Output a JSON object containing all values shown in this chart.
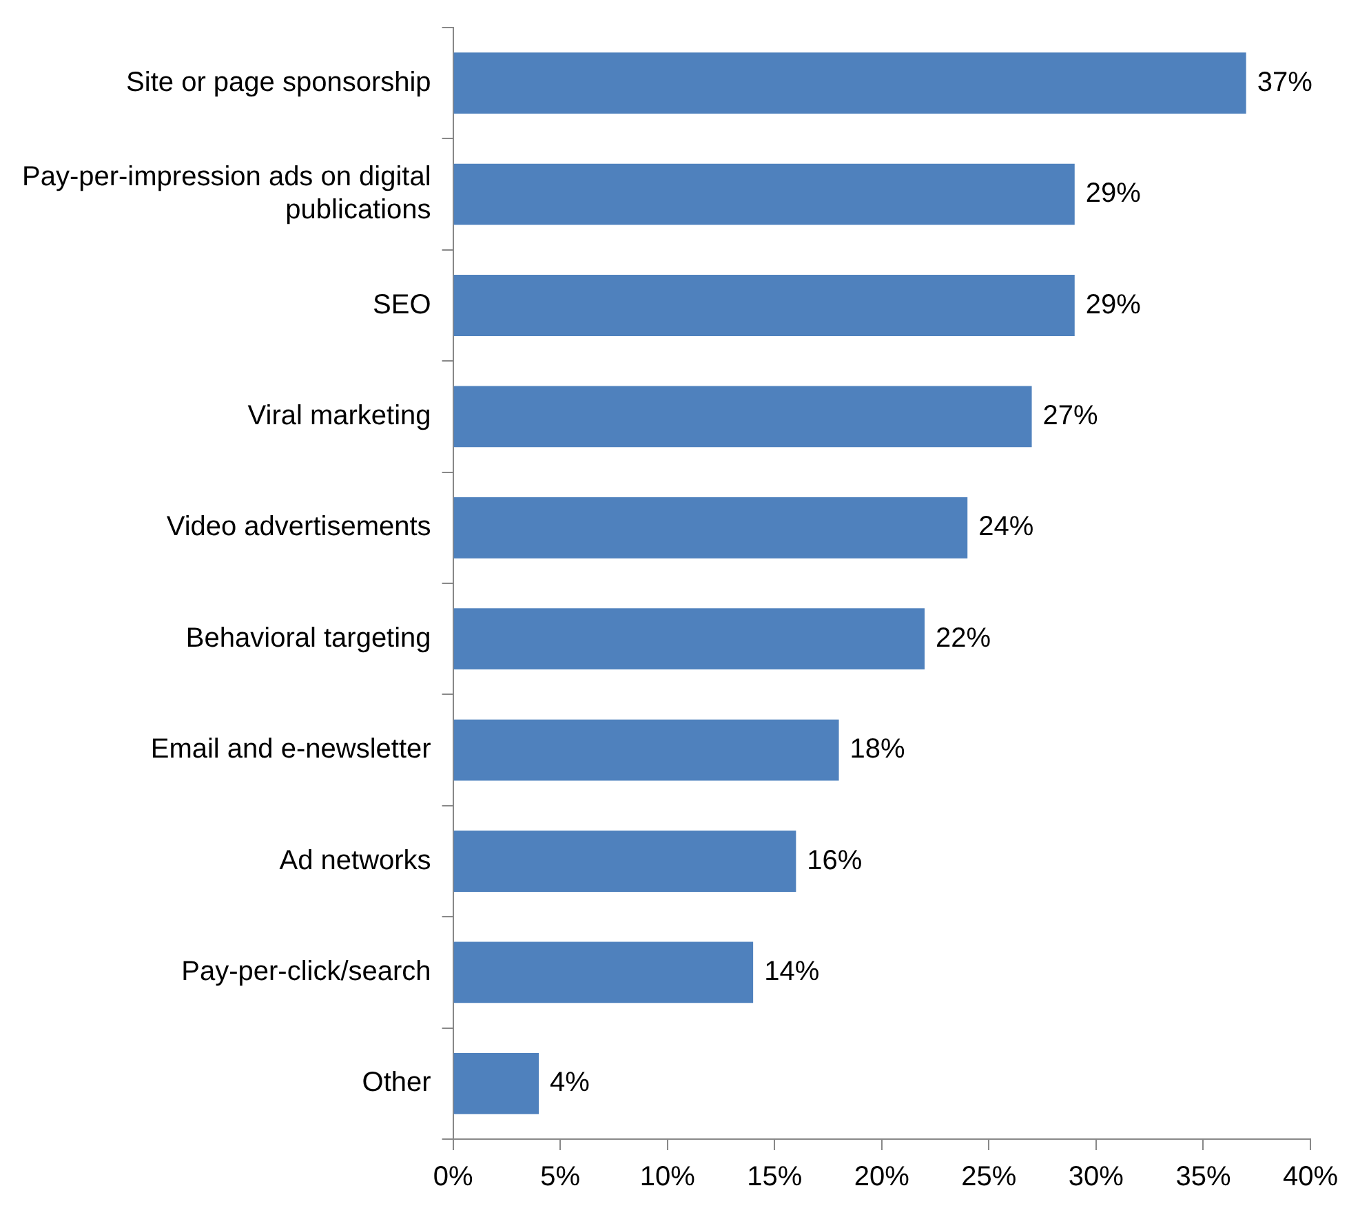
{
  "chart_data": {
    "type": "bar",
    "orientation": "horizontal",
    "categories": [
      "Site or page sponsorship",
      "Pay-per-impression ads on digital publications",
      "SEO",
      "Viral marketing",
      "Video advertisements",
      "Behavioral targeting",
      "Email and e-newsletter",
      "Ad networks",
      "Pay-per-click/search",
      "Other"
    ],
    "values": [
      37,
      29,
      29,
      27,
      24,
      22,
      18,
      16,
      14,
      4
    ],
    "value_labels": [
      "37%",
      "29%",
      "29%",
      "27%",
      "24%",
      "22%",
      "18%",
      "16%",
      "14%",
      "4%"
    ],
    "color": "#4f81bd",
    "xlim": [
      0,
      40
    ],
    "xticks": [
      {
        "value": 0,
        "label": "0%"
      },
      {
        "value": 5,
        "label": "5%"
      },
      {
        "value": 10,
        "label": "10%"
      },
      {
        "value": 15,
        "label": "15%"
      },
      {
        "value": 20,
        "label": "20%"
      },
      {
        "value": 25,
        "label": "25%"
      },
      {
        "value": 30,
        "label": "30%"
      },
      {
        "value": 35,
        "label": "35%"
      },
      {
        "value": 40,
        "label": "40%"
      }
    ],
    "legend": false
  }
}
